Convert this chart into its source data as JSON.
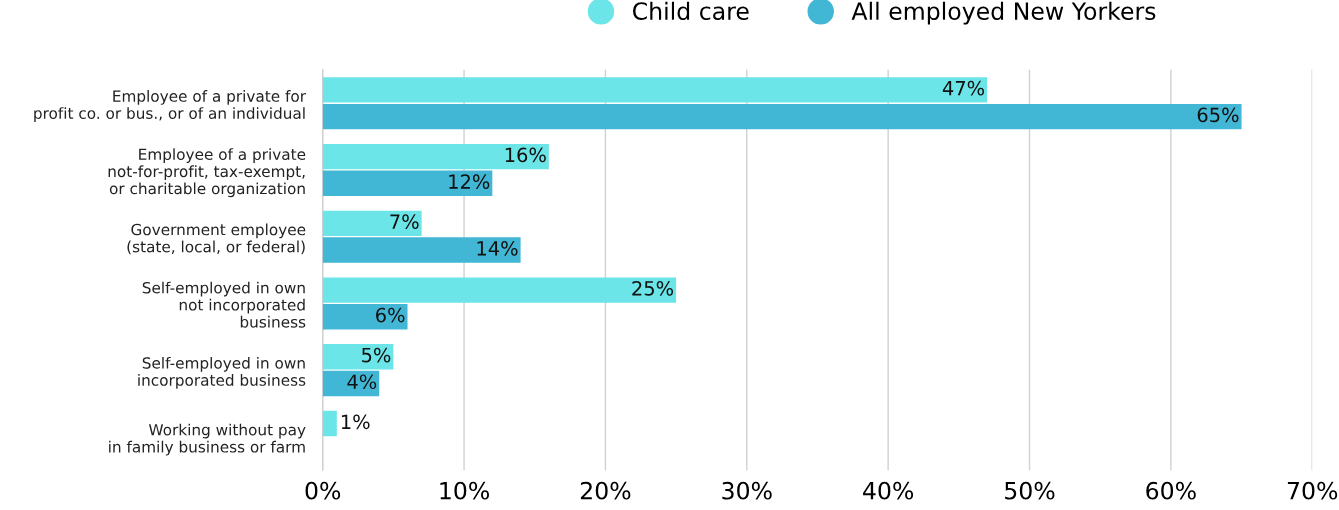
{
  "chart_data": {
    "type": "bar",
    "orientation": "horizontal",
    "categories": [
      "Employee of a private for\nprofit co. or bus., or of an individual",
      "Employee of a private\nnot-for-profit, tax-exempt,\nor charitable organization",
      "Government employee\n(state, local, or federal)",
      "Self-employed in own\nnot incorporated\nbusiness",
      "Self-employed in own\nincorporated business",
      "Working without pay\nin family business or farm"
    ],
    "series": [
      {
        "name": "Child care",
        "color": "#6ce5e8",
        "values": [
          47,
          16,
          7,
          25,
          5,
          1
        ],
        "value_labels": [
          "47%",
          "16%",
          "7%",
          "25%",
          "5%",
          "1%"
        ]
      },
      {
        "name": "All employed New Yorkers",
        "color": "#42b7d5",
        "values": [
          65,
          12,
          14,
          6,
          4,
          null
        ],
        "value_labels": [
          "65%",
          "12%",
          "14%",
          "6%",
          "4%",
          null
        ]
      }
    ],
    "xlim": [
      0,
      70
    ],
    "xticks": [
      {
        "value": 0,
        "label": "0%"
      },
      {
        "value": 10,
        "label": "10%"
      },
      {
        "value": 20,
        "label": "20%"
      },
      {
        "value": 30,
        "label": "30%"
      },
      {
        "value": 40,
        "label": "40%"
      },
      {
        "value": 50,
        "label": "50%"
      },
      {
        "value": 60,
        "label": "60%"
      },
      {
        "value": 70,
        "label": "70%"
      }
    ],
    "grid": "x",
    "legend": "top"
  }
}
